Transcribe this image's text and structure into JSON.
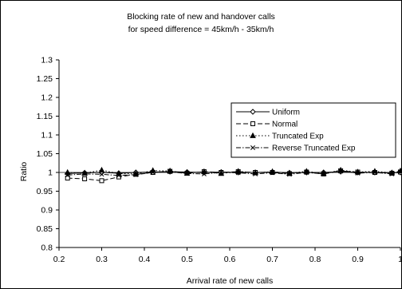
{
  "chart_data": {
    "type": "line",
    "title": "Blocking rate of new and handover calls",
    "subtitle": "for speed difference = 45km/h - 35km/h",
    "xlabel": "Arrival rate of new calls",
    "ylabel": "Ratio",
    "xlim": [
      0.2,
      1.0
    ],
    "ylim": [
      0.8,
      1.3
    ],
    "xticks": [
      "0.2",
      "0.3",
      "0.4",
      "0.5",
      "0.6",
      "0.7",
      "0.8",
      "0.9",
      "1"
    ],
    "yticks": [
      "0.8",
      "0.85",
      "0.9",
      "0.95",
      "1",
      "1.05",
      "1.1",
      "1.15",
      "1.2",
      "1.25",
      "1.3"
    ],
    "grid": false,
    "legend_position": "top-right",
    "x": [
      0.22,
      0.26,
      0.3,
      0.34,
      0.38,
      0.42,
      0.46,
      0.5,
      0.54,
      0.58,
      0.62,
      0.66,
      0.7,
      0.74,
      0.78,
      0.82,
      0.86,
      0.9,
      0.94,
      0.98,
      1.0
    ],
    "series": [
      {
        "name": "Uniform",
        "line_style": "solid",
        "marker": "diamond",
        "values": [
          0.997,
          0.999,
          1.0,
          0.998,
          1.0,
          1.001,
          1.002,
          1.001,
          1.0,
          1.001,
          1.0,
          1.0,
          1.001,
          0.999,
          1.0,
          1.0,
          1.002,
          1.0,
          1.0,
          0.999,
          1.0
        ]
      },
      {
        "name": "Normal",
        "line_style": "dashed",
        "marker": "square",
        "values": [
          0.985,
          0.983,
          0.978,
          0.988,
          0.995,
          1.0,
          1.003,
          0.998,
          1.002,
          1.0,
          1.002,
          1.0,
          1.0,
          0.997,
          1.001,
          0.996,
          1.004,
          1.001,
          1.0,
          0.998,
          1.001
        ]
      },
      {
        "name": "Truncated Exp",
        "line_style": "dotted",
        "marker": "triangle",
        "values": [
          1.0,
          0.998,
          1.006,
          0.997,
          0.996,
          1.005,
          1.004,
          0.998,
          1.002,
          0.997,
          1.003,
          0.999,
          1.002,
          0.998,
          1.003,
          0.997,
          1.006,
          1.001,
          1.003,
          0.999,
          1.004
        ]
      },
      {
        "name": "Reverse Truncated Exp",
        "line_style": "dash-dot",
        "marker": "x",
        "values": [
          0.993,
          0.996,
          0.995,
          0.992,
          0.994,
          1.0,
          1.002,
          0.997,
          0.996,
          1.0,
          0.999,
          0.996,
          0.999,
          0.995,
          1.0,
          0.996,
          1.005,
          0.998,
          1.0,
          0.996,
          1.002
        ]
      }
    ]
  }
}
